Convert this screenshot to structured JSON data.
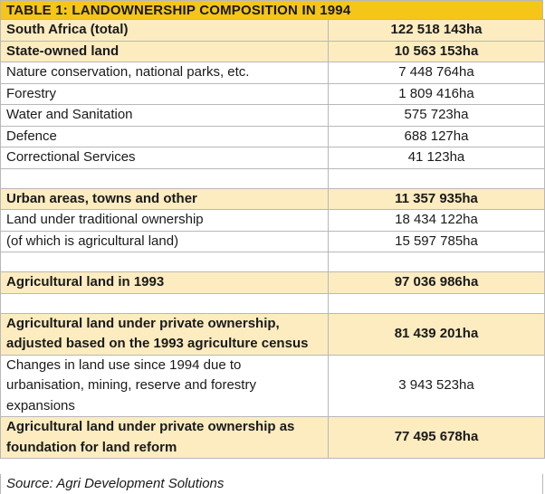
{
  "table": {
    "title": "TABLE 1: LANDOWNERSHIP COMPOSITION IN 1994",
    "source": "Source: Agri Development Solutions",
    "rows": [
      {
        "label": "South Africa (total)",
        "value": "122 518 143ha",
        "bold": true
      },
      {
        "label": "State-owned land",
        "value": "10 563 153ha",
        "bold": true
      },
      {
        "label": "Nature conservation, national parks, etc.",
        "value": "7 448 764ha",
        "bold": false
      },
      {
        "label": "Forestry",
        "value": "1 809 416ha",
        "bold": false
      },
      {
        "label": "Water and Sanitation",
        "value": "575 723ha",
        "bold": false
      },
      {
        "label": "Defence",
        "value": "688 127ha",
        "bold": false
      },
      {
        "label": "Correctional Services",
        "value": "41 123ha",
        "bold": false
      },
      {
        "label": "",
        "value": "",
        "bold": false,
        "blank": true
      },
      {
        "label": "Urban areas, towns and other",
        "value": "11 357 935ha",
        "bold": true
      },
      {
        "label": "Land under traditional ownership",
        "value": "18 434 122ha",
        "bold": false
      },
      {
        "label": "(of which is agricultural land)",
        "value": "15 597 785ha",
        "bold": false
      },
      {
        "label": "",
        "value": "",
        "bold": false,
        "blank": true
      },
      {
        "label": "Agricultural land in 1993",
        "value": "97 036 986ha",
        "bold": true
      },
      {
        "label": "",
        "value": "",
        "bold": false,
        "blank": true
      },
      {
        "label": "Agricultural land under private ownership, adjusted based on the 1993 agriculture census",
        "value": "81 439 201ha",
        "bold": true
      },
      {
        "label": "Changes in land use since 1994 due to urbanisation, mining, reserve and forestry expansions",
        "value": "3 943 523ha",
        "bold": false
      },
      {
        "label": "Agricultural land under private ownership as foundation for land reform",
        "value": "77 495 678ha",
        "bold": true
      }
    ]
  }
}
